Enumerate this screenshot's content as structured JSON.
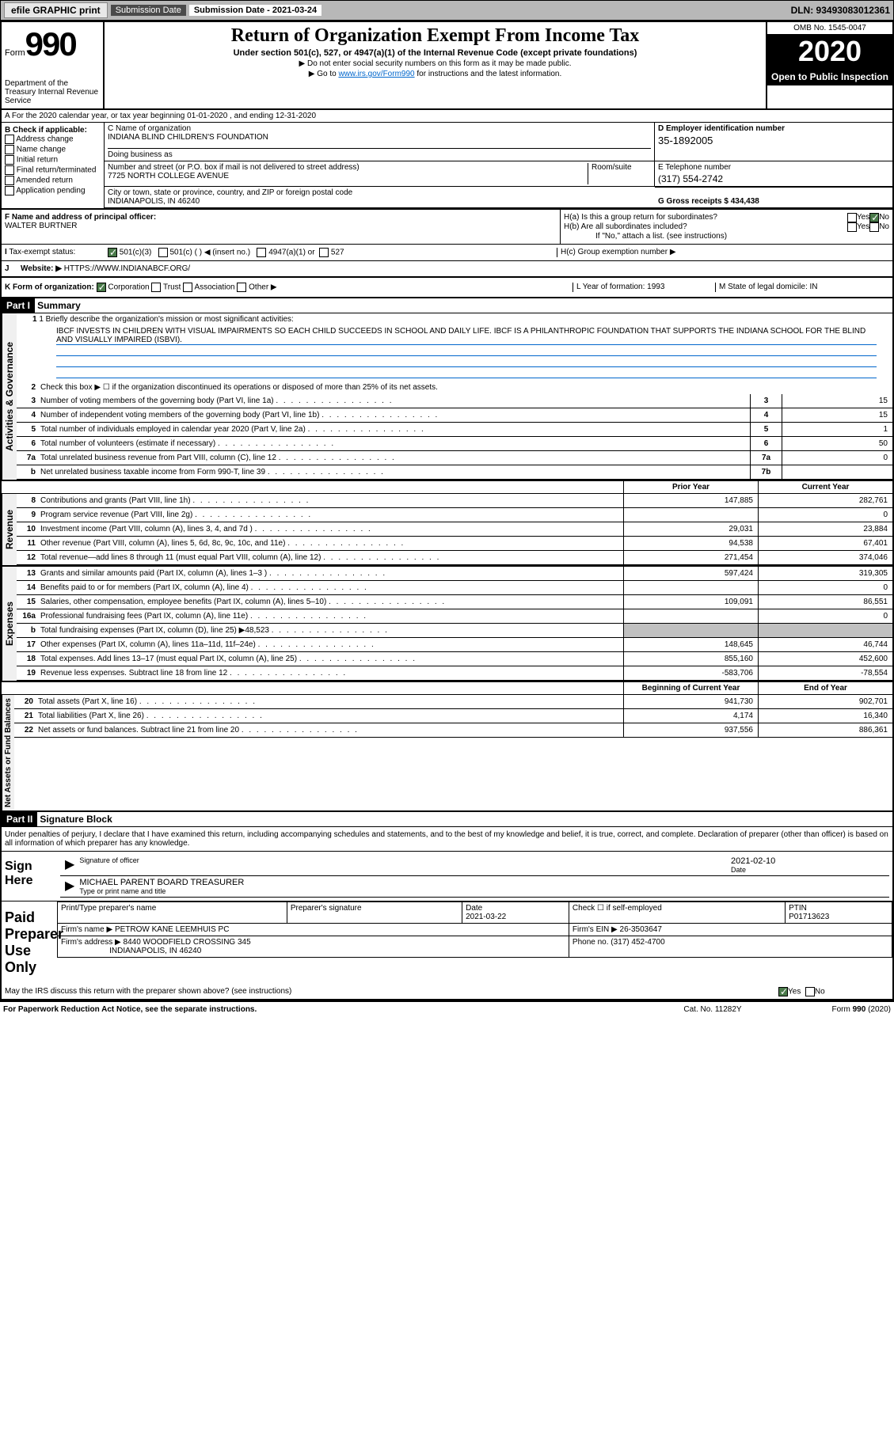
{
  "topbar": {
    "efile": "efile GRAPHIC print",
    "submission_label": "Submission Date - 2021-03-24",
    "dln": "DLN: 93493083012361"
  },
  "header": {
    "form_prefix": "Form",
    "form_num": "990",
    "dept": "Department of the Treasury Internal Revenue Service",
    "title": "Return of Organization Exempt From Income Tax",
    "subtitle": "Under section 501(c), 527, or 4947(a)(1) of the Internal Revenue Code (except private foundations)",
    "instr1": "▶ Do not enter social security numbers on this form as it may be made public.",
    "instr2_pre": "▶ Go to ",
    "instr2_link": "www.irs.gov/Form990",
    "instr2_post": " for instructions and the latest information.",
    "omb": "OMB No. 1545-0047",
    "year": "2020",
    "open": "Open to Public Inspection"
  },
  "row_a": "A For the 2020 calendar year, or tax year beginning 01-01-2020    , and ending 12-31-2020",
  "col_b": {
    "header": "B Check if applicable:",
    "items": [
      "Address change",
      "Name change",
      "Initial return",
      "Final return/terminated",
      "Amended return",
      "Application pending"
    ]
  },
  "org": {
    "c_label": "C Name of organization",
    "name": "INDIANA BLIND CHILDREN'S FOUNDATION",
    "dba_label": "Doing business as",
    "addr_label": "Number and street (or P.O. box if mail is not delivered to street address)",
    "room_label": "Room/suite",
    "addr": "7725 NORTH COLLEGE AVENUE",
    "city_label": "City or town, state or province, country, and ZIP or foreign postal code",
    "city": "INDIANAPOLIS, IN  46240",
    "d_label": "D Employer identification number",
    "ein": "35-1892005",
    "e_label": "E Telephone number",
    "tel": "(317) 554-2742",
    "g_label": "G Gross receipts $ 434,438"
  },
  "f": {
    "label": "F  Name and address of principal officer:",
    "name": "WALTER BURTNER"
  },
  "h": {
    "a": "H(a)  Is this a group return for subordinates?",
    "b": "H(b)  Are all subordinates included?",
    "ifno": "If \"No,\" attach a list. (see instructions)",
    "c": "H(c)  Group exemption number ▶",
    "yes": "Yes",
    "no": "No"
  },
  "tax_exempt": {
    "i": "I",
    "label": "Tax-exempt status:",
    "c3": "501(c)(3)",
    "c": "501(c) (  ) ◀ (insert no.)",
    "a1": "4947(a)(1) or",
    "s527": "527"
  },
  "j": {
    "label": "J",
    "website_label": "Website: ▶",
    "website": "HTTPS://WWW.INDIANABCF.ORG/"
  },
  "k": {
    "label": "K Form of organization:",
    "corp": "Corporation",
    "trust": "Trust",
    "assoc": "Association",
    "other": "Other ▶",
    "l": "L Year of formation: 1993",
    "m": "M State of legal domicile: IN"
  },
  "part1": {
    "header": "Part I",
    "title": "Summary",
    "line1_label": "1 Briefly describe the organization's mission or most significant activities:",
    "mission": "IBCF INVESTS IN CHILDREN WITH VISUAL IMPAIRMENTS SO EACH CHILD SUCCEEDS IN SCHOOL AND DAILY LIFE. IBCF IS A PHILANTHROPIC FOUNDATION THAT SUPPORTS THE INDIANA SCHOOL FOR THE BLIND AND VISUALLY IMPAIRED (ISBVI).",
    "line2": "Check this box ▶ ☐  if the organization discontinued its operations or disposed of more than 25% of its net assets.",
    "governance_label": "Activities & Governance",
    "revenue_label": "Revenue",
    "expenses_label": "Expenses",
    "netassets_label": "Net Assets or Fund Balances",
    "prior_year": "Prior Year",
    "current_year": "Current Year",
    "begin_year": "Beginning of Current Year",
    "end_year": "End of Year",
    "lines_gov": [
      {
        "num": "3",
        "text": "Number of voting members of the governing body (Part VI, line 1a)",
        "box": "3",
        "val": "15"
      },
      {
        "num": "4",
        "text": "Number of independent voting members of the governing body (Part VI, line 1b)",
        "box": "4",
        "val": "15"
      },
      {
        "num": "5",
        "text": "Total number of individuals employed in calendar year 2020 (Part V, line 2a)",
        "box": "5",
        "val": "1"
      },
      {
        "num": "6",
        "text": "Total number of volunteers (estimate if necessary)",
        "box": "6",
        "val": "50"
      },
      {
        "num": "7a",
        "text": "Total unrelated business revenue from Part VIII, column (C), line 12",
        "box": "7a",
        "val": "0"
      },
      {
        "num": "b",
        "text": "Net unrelated business taxable income from Form 990-T, line 39",
        "box": "7b",
        "val": ""
      }
    ],
    "lines_rev": [
      {
        "num": "8",
        "text": "Contributions and grants (Part VIII, line 1h)",
        "prior": "147,885",
        "curr": "282,761"
      },
      {
        "num": "9",
        "text": "Program service revenue (Part VIII, line 2g)",
        "prior": "",
        "curr": "0"
      },
      {
        "num": "10",
        "text": "Investment income (Part VIII, column (A), lines 3, 4, and 7d )",
        "prior": "29,031",
        "curr": "23,884"
      },
      {
        "num": "11",
        "text": "Other revenue (Part VIII, column (A), lines 5, 6d, 8c, 9c, 10c, and 11e)",
        "prior": "94,538",
        "curr": "67,401"
      },
      {
        "num": "12",
        "text": "Total revenue—add lines 8 through 11 (must equal Part VIII, column (A), line 12)",
        "prior": "271,454",
        "curr": "374,046"
      }
    ],
    "lines_exp": [
      {
        "num": "13",
        "text": "Grants and similar amounts paid (Part IX, column (A), lines 1–3 )",
        "prior": "597,424",
        "curr": "319,305"
      },
      {
        "num": "14",
        "text": "Benefits paid to or for members (Part IX, column (A), line 4)",
        "prior": "",
        "curr": "0"
      },
      {
        "num": "15",
        "text": "Salaries, other compensation, employee benefits (Part IX, column (A), lines 5–10)",
        "prior": "109,091",
        "curr": "86,551"
      },
      {
        "num": "16a",
        "text": "Professional fundraising fees (Part IX, column (A), line 11e)",
        "prior": "",
        "curr": "0"
      },
      {
        "num": "b",
        "text": "Total fundraising expenses (Part IX, column (D), line 25) ▶48,523",
        "prior": "GRAY",
        "curr": "GRAY"
      },
      {
        "num": "17",
        "text": "Other expenses (Part IX, column (A), lines 11a–11d, 11f–24e)",
        "prior": "148,645",
        "curr": "46,744"
      },
      {
        "num": "18",
        "text": "Total expenses. Add lines 13–17 (must equal Part IX, column (A), line 25)",
        "prior": "855,160",
        "curr": "452,600"
      },
      {
        "num": "19",
        "text": "Revenue less expenses. Subtract line 18 from line 12",
        "prior": "-583,706",
        "curr": "-78,554"
      }
    ],
    "lines_net": [
      {
        "num": "20",
        "text": "Total assets (Part X, line 16)",
        "prior": "941,730",
        "curr": "902,701"
      },
      {
        "num": "21",
        "text": "Total liabilities (Part X, line 26)",
        "prior": "4,174",
        "curr": "16,340"
      },
      {
        "num": "22",
        "text": "Net assets or fund balances. Subtract line 21 from line 20",
        "prior": "937,556",
        "curr": "886,361"
      }
    ]
  },
  "part2": {
    "header": "Part II",
    "title": "Signature Block",
    "penalty": "Under penalties of perjury, I declare that I have examined this return, including accompanying schedules and statements, and to the best of my knowledge and belief, it is true, correct, and complete. Declaration of preparer (other than officer) is based on all information of which preparer has any knowledge.",
    "sign_here": "Sign Here",
    "sig_officer": "Signature of officer",
    "date": "Date",
    "sig_date": "2021-02-10",
    "name_title": "MICHAEL PARENT  BOARD TREASURER",
    "type_name": "Type or print name and title",
    "paid_preparer": "Paid Preparer Use Only",
    "print_name_label": "Print/Type preparer's name",
    "prep_sig_label": "Preparer's signature",
    "prep_date_label": "Date",
    "prep_date": "2021-03-22",
    "check_self": "Check ☐ if self-employed",
    "ptin_label": "PTIN",
    "ptin": "P01713623",
    "firm_name_label": "Firm's name    ▶",
    "firm_name": "PETROW KANE LEEMHUIS PC",
    "firm_ein_label": "Firm's EIN ▶",
    "firm_ein": "26-3503647",
    "firm_addr_label": "Firm's address ▶",
    "firm_addr1": "8440 WOODFIELD CROSSING 345",
    "firm_addr2": "INDIANAPOLIS, IN  46240",
    "phone_label": "Phone no.",
    "phone": "(317) 452-4700",
    "discuss": "May the IRS discuss this return with the preparer shown above? (see instructions)",
    "yes": "Yes",
    "no": "No"
  },
  "footer": {
    "left": "For Paperwork Reduction Act Notice, see the separate instructions.",
    "mid": "Cat. No. 11282Y",
    "right": "Form 990 (2020)"
  }
}
